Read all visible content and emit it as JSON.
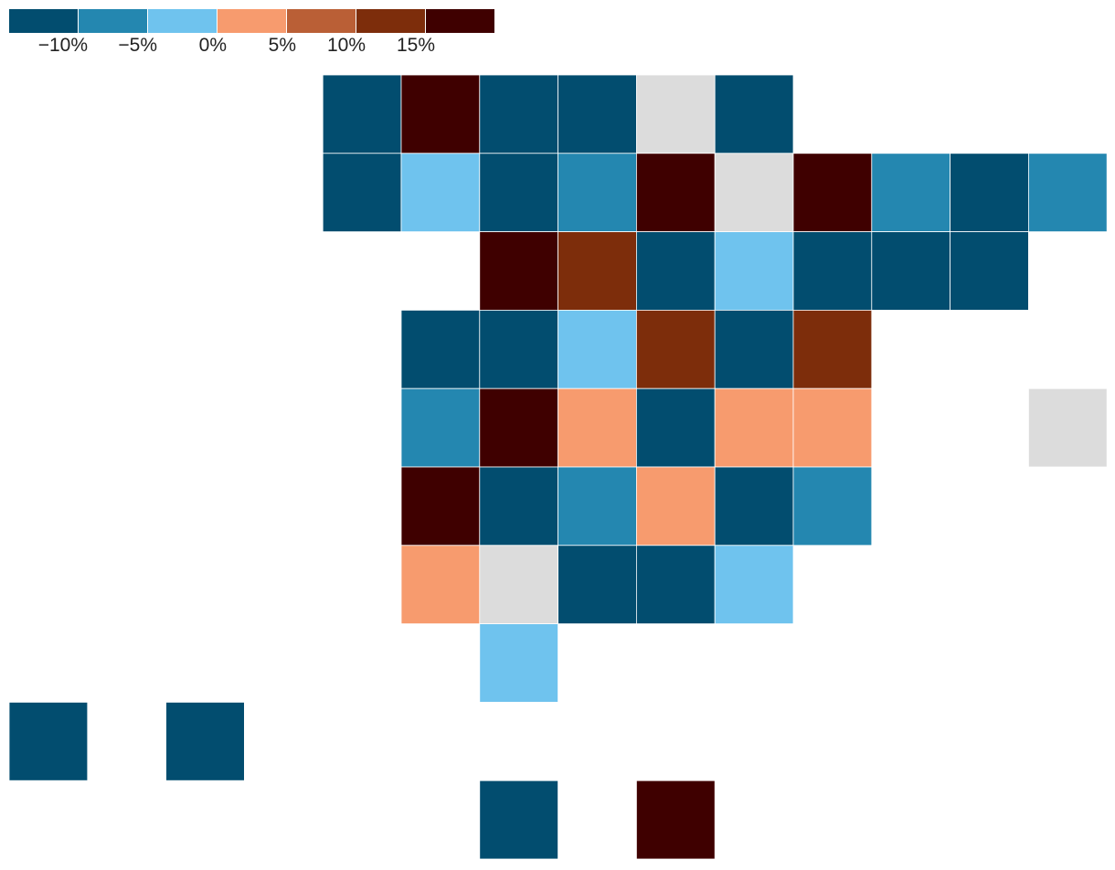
{
  "chart_data": {
    "type": "heatmap",
    "legend": {
      "placement": "top-left",
      "colors": [
        "#024d6f",
        "#2487b0",
        "#6fc3ee",
        "#f79b6e",
        "#ba5f36",
        "#7d2d0b",
        "#3f0000"
      ],
      "tick_labels": [
        "−10%",
        "−5%",
        "0%",
        "5%",
        "10%",
        "15%"
      ]
    },
    "no_data_color": "#dcdcdc",
    "rows": [
      [
        null,
        null,
        null,
        null,
        "#024d6f",
        "#3f0000",
        "#024d6f",
        "#024d6f",
        "#dcdcdc",
        "#024d6f",
        null,
        null,
        null,
        null
      ],
      [
        null,
        null,
        null,
        null,
        "#024d6f",
        "#6fc3ee",
        "#024d6f",
        "#2487b0",
        "#3f0000",
        "#dcdcdc",
        "#3f0000",
        "#2487b0",
        "#024d6f",
        "#2487b0"
      ],
      [
        null,
        null,
        null,
        null,
        null,
        null,
        "#3f0000",
        "#7d2d0b",
        "#024d6f",
        "#6fc3ee",
        "#024d6f",
        "#024d6f",
        "#024d6f",
        null
      ],
      [
        null,
        null,
        null,
        null,
        null,
        "#024d6f",
        "#024d6f",
        "#6fc3ee",
        "#7d2d0b",
        "#024d6f",
        "#7d2d0b",
        null,
        null,
        null
      ],
      [
        null,
        null,
        null,
        null,
        null,
        "#2487b0",
        "#3f0000",
        "#f79b6e",
        "#024d6f",
        "#f79b6e",
        "#f79b6e",
        null,
        null,
        "#dcdcdc"
      ],
      [
        null,
        null,
        null,
        null,
        null,
        "#3f0000",
        "#024d6f",
        "#2487b0",
        "#f79b6e",
        "#024d6f",
        "#2487b0",
        null,
        null,
        null
      ],
      [
        null,
        null,
        null,
        null,
        null,
        "#f79b6e",
        "#dcdcdc",
        "#024d6f",
        "#024d6f",
        "#6fc3ee",
        null,
        null,
        null,
        null
      ],
      [
        null,
        null,
        null,
        null,
        null,
        null,
        "#6fc3ee",
        null,
        null,
        null,
        null,
        null,
        null,
        null
      ],
      [
        "#024d6f",
        null,
        "#024d6f",
        null,
        null,
        null,
        null,
        null,
        null,
        null,
        null,
        null,
        null,
        null
      ],
      [
        null,
        null,
        null,
        null,
        null,
        null,
        "#024d6f",
        null,
        "#3f0000",
        null,
        null,
        null,
        null,
        null
      ]
    ]
  }
}
